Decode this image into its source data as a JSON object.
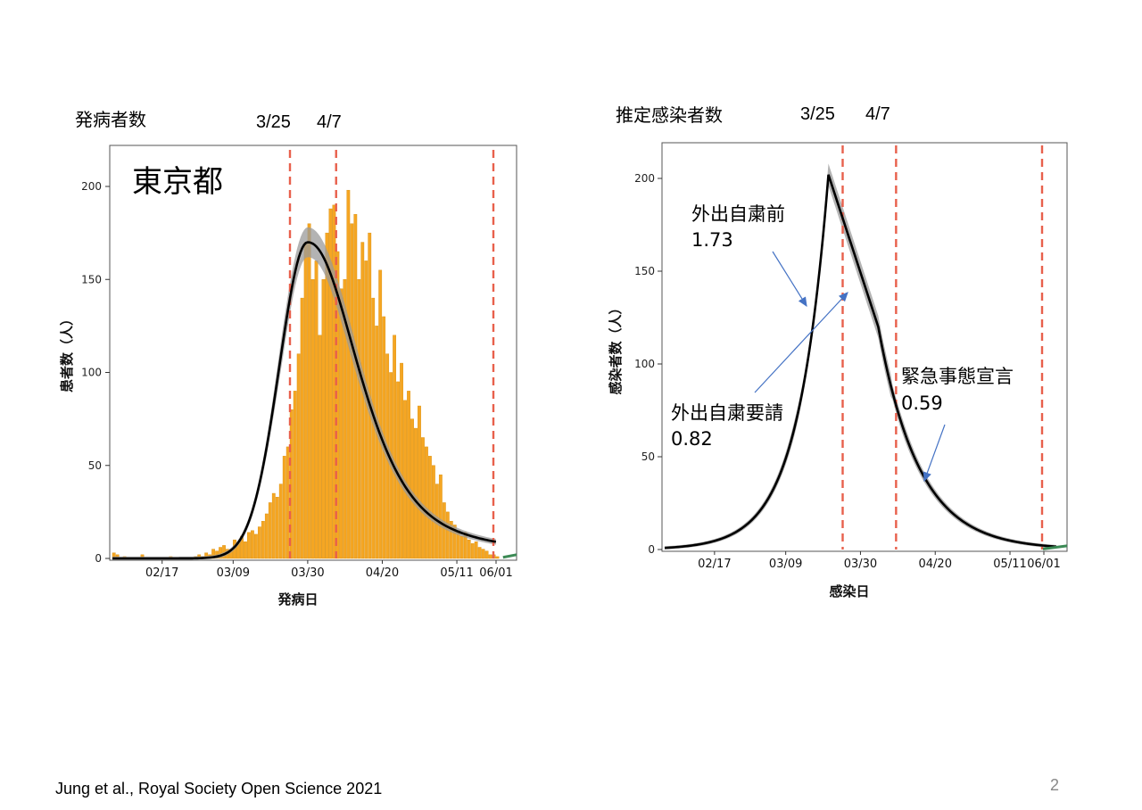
{
  "footer": {
    "citation": "Jung et al., Royal Society Open Science 2021",
    "page_number": "2"
  },
  "colors": {
    "bars": "#F5A623",
    "bar_edge": "#D98E0A",
    "curve": "#000000",
    "ci_band": "#9a9a9a",
    "vline": "#E8604C",
    "tail": "#3c8a55",
    "arrow": "#4472C4"
  },
  "left": {
    "title": "発病者数",
    "mark_dates": [
      "3/25",
      "4/7"
    ]
  },
  "right": {
    "title": "推定感染者数",
    "mark_dates": [
      "3/25",
      "4/7"
    ]
  },
  "chart_data": [
    {
      "type": "bar",
      "name": "onset",
      "title": "東京都",
      "xlabel": "発病日",
      "ylabel": "患者数（人）",
      "ylim": [
        0,
        220
      ],
      "yticks": [
        0,
        50,
        100,
        150,
        200
      ],
      "xlim_days": [
        0,
        110
      ],
      "xtick_labels": [
        "02/17",
        "03/09",
        "03/30",
        "04/20",
        "05/11",
        "06/01"
      ],
      "xtick_days": [
        14,
        34,
        55,
        76,
        97,
        118
      ],
      "vlines_days": [
        50,
        63,
        118
      ],
      "bars": {
        "start_day": 0,
        "values": [
          3,
          2,
          0,
          1,
          0,
          0,
          0,
          0,
          2,
          0,
          0,
          0,
          0,
          0,
          0,
          0,
          1,
          0,
          0,
          0,
          0,
          0,
          0,
          1,
          2,
          1,
          3,
          2,
          5,
          4,
          6,
          7,
          5,
          4,
          10,
          8,
          12,
          9,
          14,
          15,
          13,
          17,
          20,
          24,
          30,
          35,
          33,
          40,
          55,
          60,
          80,
          90,
          110,
          140,
          170,
          180,
          150,
          160,
          120,
          150,
          175,
          188,
          190,
          165,
          145,
          150,
          198,
          180,
          185,
          150,
          170,
          160,
          175,
          140,
          125,
          155,
          130,
          110,
          100,
          120,
          95,
          105,
          85,
          90,
          75,
          70,
          82,
          65,
          60,
          55,
          50,
          40,
          45,
          30,
          25,
          20,
          18,
          15,
          12,
          14,
          10,
          8,
          9,
          6,
          5,
          4,
          2,
          2,
          1,
          0,
          0
        ]
      },
      "fit_curve": {
        "peak_day": 55,
        "peak_value": 170,
        "rise_scale": 8.0,
        "decay_scale": 14.0
      },
      "projection_days": [
        110,
        122
      ]
    },
    {
      "type": "line",
      "name": "infection",
      "xlabel": "感染日",
      "ylabel": "感染者数（人）",
      "ylim": [
        0,
        210
      ],
      "yticks": [
        0,
        50,
        100,
        150,
        200
      ],
      "xtick_labels": [
        "02/17",
        "03/09",
        "03/30",
        "04/20",
        "05/11",
        "06/01"
      ],
      "xtick_days": [
        14,
        34,
        55,
        76,
        97,
        118
      ],
      "vlines_days": [
        50,
        65,
        118
      ],
      "series": [
        {
          "name": "estimated infections",
          "peak_day": 46,
          "peak_value": 202,
          "growth_rate": 0.118,
          "mid_day": 60,
          "mid_value": 120,
          "post_decay_scale": 11.5
        }
      ],
      "annotations": [
        {
          "label": "外出自粛前",
          "value": "1.73"
        },
        {
          "label": "外出自粛要請",
          "value": "0.82"
        },
        {
          "label": "緊急事態宣言",
          "value": "0.59"
        }
      ]
    }
  ]
}
